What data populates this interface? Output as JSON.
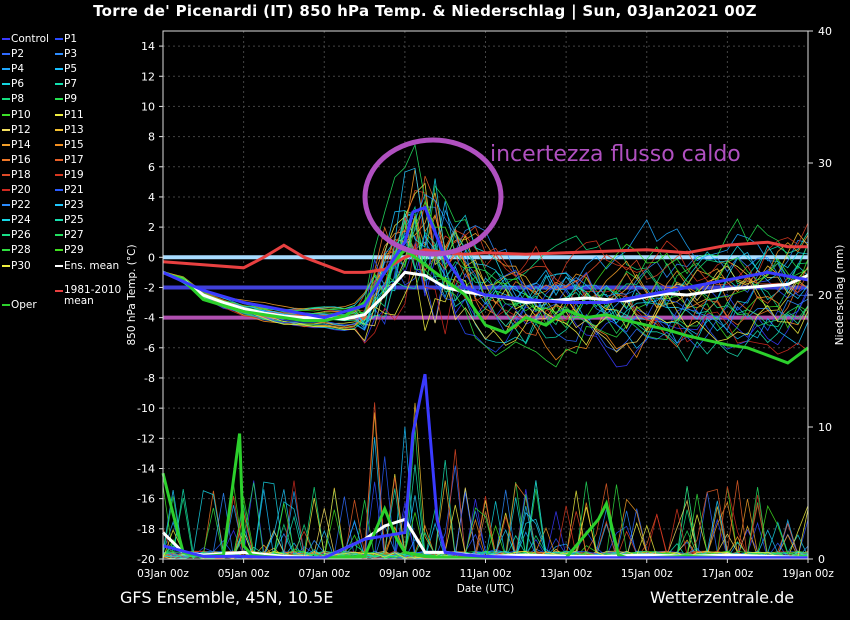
{
  "title": "Torre de' Picenardi  (IT)  850 hPa Temp. & Niederschlag | Sun, 03Jan2021 00Z",
  "footer": {
    "left": "GFS Ensemble, 45N, 10.5E",
    "right": "Wetterzentrale.de"
  },
  "legend": [
    {
      "label": "Control",
      "color": "#3a3aff"
    },
    {
      "label": "P1",
      "color": "#2a4cff"
    },
    {
      "label": "P2",
      "color": "#2f6bff"
    },
    {
      "label": "P3",
      "color": "#2d8cff"
    },
    {
      "label": "P4",
      "color": "#1fa8ff"
    },
    {
      "label": "P5",
      "color": "#18c0ff"
    },
    {
      "label": "P6",
      "color": "#14d6e0"
    },
    {
      "label": "P7",
      "color": "#12e0b0"
    },
    {
      "label": "P8",
      "color": "#14e080"
    },
    {
      "label": "P9",
      "color": "#24e050"
    },
    {
      "label": "P10",
      "color": "#3ce028"
    },
    {
      "label": "P11",
      "color": "#f0f040"
    },
    {
      "label": "P12",
      "color": "#f6e060"
    },
    {
      "label": "P13",
      "color": "#f5c030"
    },
    {
      "label": "P14",
      "color": "#f5a028"
    },
    {
      "label": "P15",
      "color": "#f59020"
    },
    {
      "label": "P16",
      "color": "#f07828"
    },
    {
      "label": "P17",
      "color": "#e86028"
    },
    {
      "label": "P18",
      "color": "#e04a28"
    },
    {
      "label": "P19",
      "color": "#d83820"
    },
    {
      "label": "P20",
      "color": "#d02a20"
    },
    {
      "label": "P21",
      "color": "#2a5cff"
    },
    {
      "label": "P22",
      "color": "#2a8cff"
    },
    {
      "label": "P23",
      "color": "#20c8ff"
    },
    {
      "label": "P24",
      "color": "#18d8e8"
    },
    {
      "label": "P25",
      "color": "#18e0b0"
    },
    {
      "label": "P26",
      "color": "#18e088"
    },
    {
      "label": "P27",
      "color": "#22e060"
    },
    {
      "label": "P28",
      "color": "#30e040"
    },
    {
      "label": "P29",
      "color": "#40e020"
    },
    {
      "label": "P30",
      "color": "#f0f040"
    },
    {
      "label": "Ens. mean",
      "color": "#ffffff"
    },
    {
      "label": "1981-2010 mean",
      "color": "#e84040"
    },
    {
      "label": "Oper",
      "color": "#2cd02c"
    }
  ],
  "chart_data": {
    "type": "line",
    "xlabel": "Date (UTC)",
    "ylabel_left": "850 hPa Temp. (°C)",
    "ylabel_right": "Niederschlag (mm)",
    "x_ticks": [
      "03Jan 00z",
      "05Jan 00z",
      "07Jan 00z",
      "09Jan 00z",
      "11Jan 00z",
      "13Jan 00z",
      "15Jan 00z",
      "17Jan 00z",
      "19Jan 00z"
    ],
    "x_range_days": [
      0,
      16
    ],
    "y_left_range": [
      -20,
      15
    ],
    "y_left_ticks": [
      14,
      12,
      10,
      8,
      6,
      4,
      2,
      0,
      -2,
      -4,
      -6,
      -8,
      -10,
      -12,
      -14,
      -16,
      -18,
      -20
    ],
    "y_right_range": [
      0,
      40
    ],
    "y_right_ticks": [
      0,
      10,
      20,
      30,
      40
    ],
    "reference_lines": [
      {
        "value": 0,
        "color": "#a8dcff"
      },
      {
        "value": -2,
        "color": "#4040d8"
      },
      {
        "value": -4,
        "color": "#b050b0"
      }
    ],
    "annotation": {
      "text": "incertezza flusso caldo",
      "color": "#b050c0"
    },
    "series": [
      {
        "name": "Ens. mean",
        "color": "#ffffff",
        "x": [
          0,
          0.5,
          1,
          1.5,
          2,
          2.5,
          3,
          3.5,
          4,
          4.5,
          5,
          5.5,
          6,
          6.5,
          7,
          7.5,
          8,
          8.5,
          9,
          9.5,
          10,
          10.5,
          11,
          11.5,
          12,
          12.5,
          13,
          13.5,
          14,
          14.5,
          15,
          15.5,
          16
        ],
        "y": [
          -1,
          -1.5,
          -2.5,
          -3,
          -3.4,
          -3.7,
          -3.9,
          -4,
          -4,
          -4.1,
          -3.8,
          -2.5,
          -1,
          -1.2,
          -2,
          -2.3,
          -2.5,
          -2.7,
          -3,
          -2.9,
          -2.8,
          -2.7,
          -2.8,
          -2.9,
          -2.6,
          -2.4,
          -2.5,
          -2.3,
          -2.1,
          -2,
          -1.9,
          -1.8,
          -1.2
        ]
      },
      {
        "name": "1981-2010 mean",
        "color": "#e84040",
        "x": [
          0,
          1,
          2,
          2.5,
          3,
          3.5,
          4,
          4.5,
          5,
          5.5,
          6,
          6.5,
          7,
          7.5,
          8,
          9,
          10,
          11,
          12,
          12.5,
          13,
          14,
          15,
          15.5,
          16
        ],
        "y": [
          -0.3,
          -0.5,
          -0.7,
          0,
          0.8,
          0,
          -0.5,
          -1,
          -1,
          -0.8,
          0,
          0.5,
          0.3,
          0.2,
          0.3,
          0.2,
          0.3,
          0.4,
          0.5,
          0.4,
          0.3,
          0.8,
          1,
          0.7,
          0.7
        ]
      },
      {
        "name": "Oper",
        "color": "#2cd02c",
        "x": [
          0,
          0.5,
          1,
          1.5,
          2,
          2.5,
          3,
          3.5,
          4,
          4.5,
          5,
          5.5,
          6,
          6.5,
          7,
          7.5,
          8,
          8.5,
          9,
          9.5,
          10,
          10.5,
          11,
          11.5,
          12,
          12.5,
          13,
          13.5,
          14,
          14.5,
          15,
          15.5,
          16
        ],
        "y": [
          -1,
          -1.5,
          -2.8,
          -3.2,
          -3.6,
          -3.8,
          -4,
          -4.2,
          -4.2,
          -3.9,
          -3,
          -1,
          0.5,
          -0.5,
          -1.5,
          -2.5,
          -4.5,
          -5,
          -4,
          -4.5,
          -3.5,
          -4,
          -3.8,
          -4.2,
          -4.5,
          -4.8,
          -5.2,
          -5.5,
          -5.8,
          -6,
          -6.5,
          -7,
          -6
        ]
      },
      {
        "name": "Control",
        "color": "#3a3aff",
        "x": [
          0,
          1,
          2,
          3,
          4,
          5,
          5.5,
          6,
          6.2,
          6.5,
          7,
          7.5,
          8,
          9,
          10,
          11,
          12,
          13,
          14,
          15,
          16
        ],
        "y": [
          -1,
          -2.2,
          -3,
          -3.5,
          -4,
          -3.2,
          -1,
          1,
          3,
          3.3,
          0,
          -2,
          -2.5,
          -2.8,
          -3,
          -3,
          -2.5,
          -2,
          -1.5,
          -1,
          -1.5
        ]
      }
    ],
    "precip_series": [
      {
        "name": "Ens. mean",
        "color": "#ffffff",
        "x": [
          0,
          0.5,
          1,
          2,
          3,
          4,
          5,
          5.5,
          6,
          6.5,
          7,
          8,
          9,
          10,
          11,
          12,
          13,
          14,
          15,
          16
        ],
        "y": [
          2,
          0.5,
          0.3,
          0.5,
          0.2,
          0.1,
          1.5,
          2.5,
          3,
          0.5,
          0.5,
          0.2,
          0.3,
          0.2,
          0.2,
          0.3,
          0.2,
          0.3,
          0.2,
          0.1
        ]
      },
      {
        "name": "Oper",
        "color": "#2cd02c",
        "x": [
          0,
          0.2,
          0.5,
          1,
          1.5,
          1.9,
          2,
          2.2,
          2.5,
          3,
          4,
          5,
          5.5,
          5.8,
          6,
          6.5,
          7,
          8,
          9,
          10,
          10.8,
          11,
          11.3,
          11.5,
          12,
          13,
          14,
          15,
          16
        ],
        "y": [
          6.5,
          4,
          0.5,
          0.2,
          0.3,
          9.5,
          1,
          0.3,
          0.2,
          0.1,
          0.1,
          0.2,
          3.8,
          1.5,
          0.5,
          0.2,
          0.1,
          0.1,
          0.1,
          0.1,
          3,
          4.2,
          0.3,
          0.1,
          0.1,
          0.2,
          0.1,
          0.1,
          0.1
        ]
      },
      {
        "name": "Control",
        "color": "#3a3aff",
        "x": [
          0,
          1,
          2,
          3,
          4,
          5,
          6,
          6.2,
          6.5,
          6.8,
          7,
          7.5,
          8,
          9,
          10,
          11,
          12,
          13,
          14,
          15,
          16
        ],
        "y": [
          1,
          0.2,
          0.2,
          0.1,
          0.1,
          1.5,
          2,
          9.5,
          14,
          3,
          0.5,
          0.3,
          0.2,
          0.1,
          0.1,
          0.1,
          0.1,
          0.1,
          0.1,
          0.1,
          0.1
        ]
      }
    ]
  }
}
